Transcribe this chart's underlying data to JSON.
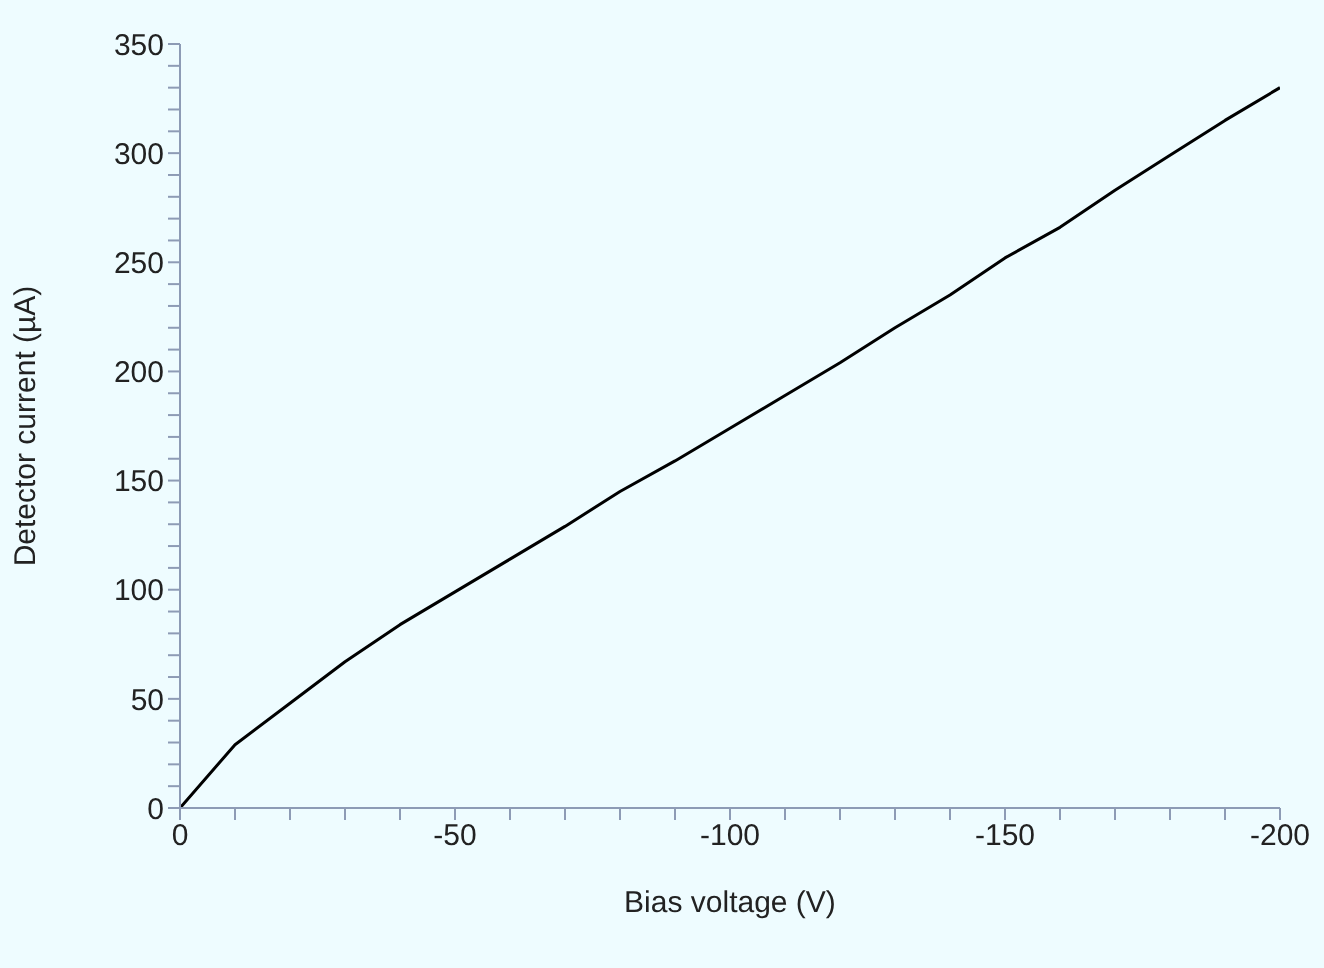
{
  "chart_data": {
    "type": "line",
    "xlabel": "Bias voltage (V)",
    "ylabel": "Detector current (µA)",
    "x": [
      0,
      -10,
      -20,
      -30,
      -40,
      -50,
      -60,
      -70,
      -80,
      -90,
      -100,
      -110,
      -120,
      -130,
      -140,
      -150,
      -160,
      -170,
      -180,
      -190,
      -200
    ],
    "series": [
      {
        "color": "#000000",
        "values": [
          0,
          29,
          48,
          67,
          84,
          99,
          114,
          129,
          145,
          159,
          174,
          189,
          204,
          220,
          235,
          252,
          266,
          283,
          299,
          315,
          330
        ]
      }
    ],
    "xlim": [
      0,
      -200
    ],
    "xticks": [
      0,
      {
        "value": -10,
        "label": null
      },
      {
        "value": -20,
        "label": null
      },
      {
        "value": -30,
        "label": null
      },
      {
        "value": -40,
        "label": null
      },
      -50,
      {
        "value": -60,
        "label": null
      },
      {
        "value": -70,
        "label": null
      },
      {
        "value": -80,
        "label": null
      },
      {
        "value": -90,
        "label": null
      },
      -100,
      {
        "value": -110,
        "label": null
      },
      {
        "value": -120,
        "label": null
      },
      {
        "value": -130,
        "label": null
      },
      {
        "value": -140,
        "label": null
      },
      -150,
      {
        "value": -160,
        "label": null
      },
      {
        "value": -170,
        "label": null
      },
      {
        "value": -180,
        "label": null
      },
      {
        "value": -190,
        "label": null
      },
      -200
    ],
    "ylim": [
      0,
      350
    ],
    "yticks": [
      0,
      {
        "value": 10,
        "label": null
      },
      {
        "value": 20,
        "label": null
      },
      {
        "value": 30,
        "label": null
      },
      {
        "value": 40,
        "label": null
      },
      50,
      {
        "value": 60,
        "label": null
      },
      {
        "value": 70,
        "label": null
      },
      {
        "value": 80,
        "label": null
      },
      {
        "value": 90,
        "label": null
      },
      100,
      {
        "value": 110,
        "label": null
      },
      {
        "value": 120,
        "label": null
      },
      {
        "value": 130,
        "label": null
      },
      {
        "value": 140,
        "label": null
      },
      150,
      {
        "value": 160,
        "label": null
      },
      {
        "value": 170,
        "label": null
      },
      {
        "value": 180,
        "label": null
      },
      {
        "value": 190,
        "label": null
      },
      200,
      {
        "value": 210,
        "label": null
      },
      {
        "value": 220,
        "label": null
      },
      {
        "value": 230,
        "label": null
      },
      {
        "value": 240,
        "label": null
      },
      250,
      {
        "value": 260,
        "label": null
      },
      {
        "value": 270,
        "label": null
      },
      {
        "value": 280,
        "label": null
      },
      {
        "value": 290,
        "label": null
      },
      300,
      {
        "value": 310,
        "label": null
      },
      {
        "value": 320,
        "label": null
      },
      {
        "value": 330,
        "label": null
      },
      {
        "value": 340,
        "label": null
      },
      350
    ],
    "grid": false,
    "legend": false,
    "marker": "none",
    "line_style": "solid"
  }
}
